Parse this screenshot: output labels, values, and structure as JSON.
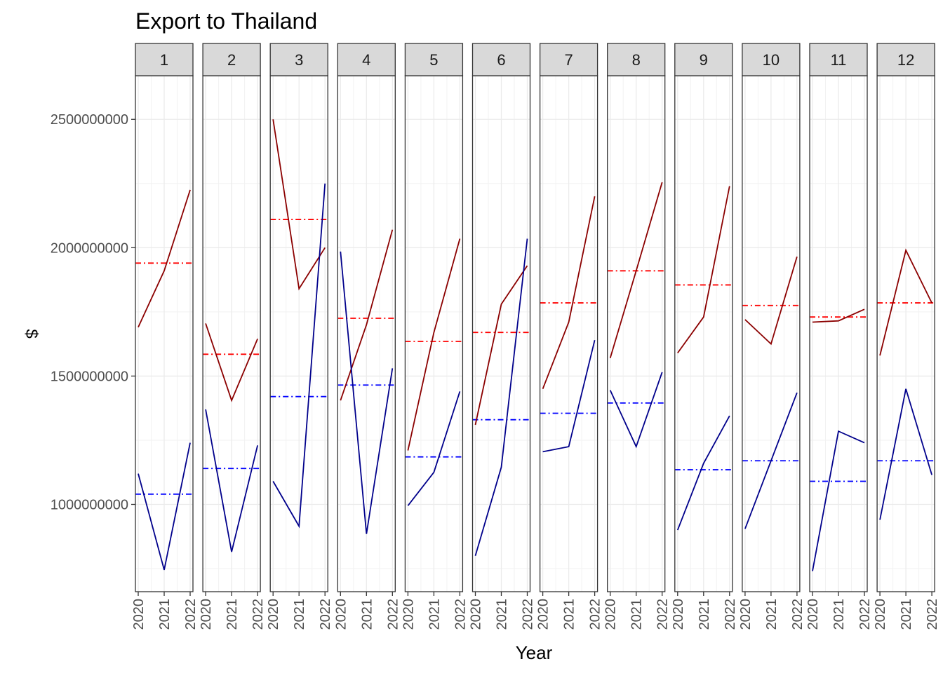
{
  "chart_data": {
    "type": "line",
    "title": "Export to Thailand",
    "xlabel": "Year",
    "ylabel": "$",
    "facet_labels": [
      "1",
      "2",
      "3",
      "4",
      "5",
      "6",
      "7",
      "8",
      "9",
      "10",
      "11",
      "12"
    ],
    "x": [
      "2020",
      "2021",
      "2022"
    ],
    "ylim": [
      660000000,
      2670000000
    ],
    "yticks": [
      1000000000,
      1500000000,
      2000000000,
      2500000000
    ],
    "ytick_labels": [
      "1000000000",
      "1500000000",
      "2000000000",
      "2500000000"
    ],
    "grid": true,
    "legend": "none",
    "colors": {
      "dark_red": "#8b0000",
      "dark_blue": "#00008b",
      "mean_red": "#ff0000",
      "mean_blue": "#0000ff"
    },
    "panels": [
      {
        "month": "1",
        "red": [
          1690000000,
          1910000000,
          2225000000
        ],
        "blue": [
          1120000000,
          745000000,
          1240000000
        ],
        "red_mean": 1940000000,
        "blue_mean": 1040000000
      },
      {
        "month": "2",
        "red": [
          1705000000,
          1405000000,
          1645000000
        ],
        "blue": [
          1370000000,
          815000000,
          1230000000
        ],
        "red_mean": 1585000000,
        "blue_mean": 1140000000
      },
      {
        "month": "3",
        "red": [
          2500000000,
          1840000000,
          2000000000
        ],
        "blue": [
          1090000000,
          915000000,
          2250000000
        ],
        "red_mean": 2110000000,
        "blue_mean": 1420000000
      },
      {
        "month": "4",
        "red": [
          1405000000,
          1700000000,
          2070000000
        ],
        "blue": [
          1985000000,
          885000000,
          1530000000
        ],
        "red_mean": 1725000000,
        "blue_mean": 1465000000
      },
      {
        "month": "5",
        "red": [
          1210000000,
          1670000000,
          2035000000
        ],
        "blue": [
          995000000,
          1125000000,
          1440000000
        ],
        "red_mean": 1635000000,
        "blue_mean": 1185000000
      },
      {
        "month": "6",
        "red": [
          1310000000,
          1780000000,
          1930000000
        ],
        "blue": [
          800000000,
          1145000000,
          2035000000
        ],
        "red_mean": 1670000000,
        "blue_mean": 1330000000
      },
      {
        "month": "7",
        "red": [
          1450000000,
          1710000000,
          2200000000
        ],
        "blue": [
          1205000000,
          1225000000,
          1640000000
        ],
        "red_mean": 1785000000,
        "blue_mean": 1355000000
      },
      {
        "month": "8",
        "red": [
          1570000000,
          1910000000,
          2255000000
        ],
        "blue": [
          1445000000,
          1225000000,
          1515000000
        ],
        "red_mean": 1910000000,
        "blue_mean": 1395000000
      },
      {
        "month": "9",
        "red": [
          1590000000,
          1730000000,
          2240000000
        ],
        "blue": [
          900000000,
          1160000000,
          1345000000
        ],
        "red_mean": 1855000000,
        "blue_mean": 1135000000
      },
      {
        "month": "10",
        "red": [
          1720000000,
          1625000000,
          1965000000
        ],
        "blue": [
          905000000,
          1170000000,
          1435000000
        ],
        "red_mean": 1775000000,
        "blue_mean": 1170000000
      },
      {
        "month": "11",
        "red": [
          1710000000,
          1715000000,
          1760000000
        ],
        "blue": [
          740000000,
          1285000000,
          1240000000
        ],
        "red_mean": 1730000000,
        "blue_mean": 1090000000
      },
      {
        "month": "12",
        "red": [
          1580000000,
          1990000000,
          1785000000
        ],
        "blue": [
          940000000,
          1450000000,
          1115000000
        ],
        "red_mean": 1785000000,
        "blue_mean": 1170000000
      }
    ]
  }
}
